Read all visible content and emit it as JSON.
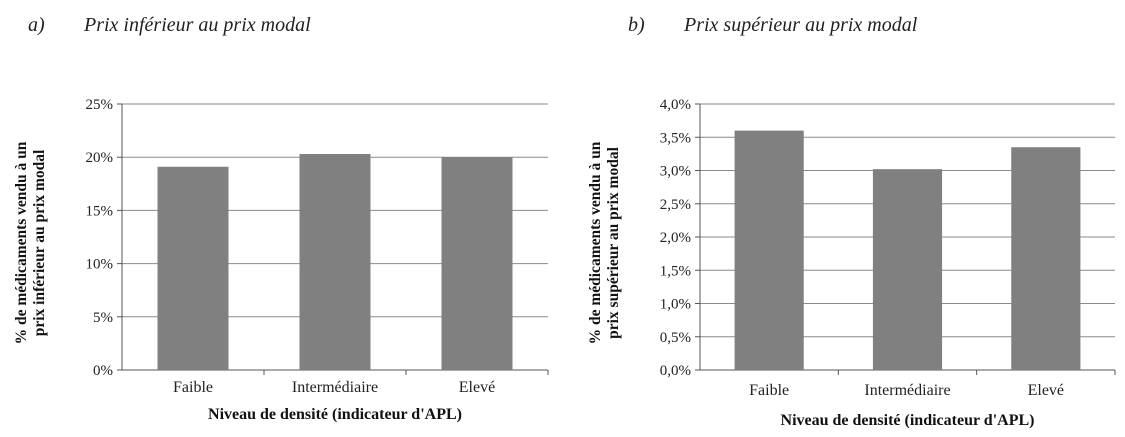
{
  "captions": [
    {
      "letter": "a)",
      "text": "Prix inférieur au prix modal"
    },
    {
      "letter": "b)",
      "text": "Prix supérieur au prix modal"
    }
  ],
  "chart_data": [
    {
      "type": "bar",
      "categories": [
        "Faible",
        "Intermédiaire",
        "Elevé"
      ],
      "values": [
        19.1,
        20.3,
        20.0
      ],
      "ylim": [
        0,
        25
      ],
      "yticks": [
        0,
        5,
        10,
        15,
        20,
        25
      ],
      "ytick_labels": [
        "0%",
        "5%",
        "10%",
        "15%",
        "20%",
        "25%"
      ],
      "ylabel_lines": [
        "% de médicaments vendu à un",
        "prix inférieur au prix modal"
      ],
      "xlabel": "Niveau de densité (indicateur d'APL)",
      "grid": true,
      "bar_color": "#808080"
    },
    {
      "type": "bar",
      "categories": [
        "Faible",
        "Intermédiaire",
        "Elevé"
      ],
      "values": [
        3.6,
        3.02,
        3.35
      ],
      "ylim": [
        0,
        4.0
      ],
      "yticks": [
        0,
        0.5,
        1.0,
        1.5,
        2.0,
        2.5,
        3.0,
        3.5,
        4.0
      ],
      "ytick_labels": [
        "0,0%",
        "0,5%",
        "1,0%",
        "1,5%",
        "2,0%",
        "2,5%",
        "3,0%",
        "3,5%",
        "4,0%"
      ],
      "ylabel_lines": [
        "% de médicaments vendu à un",
        "prix supérieur au prix modal"
      ],
      "xlabel": "Niveau de densité (indicateur d'APL)",
      "grid": true,
      "bar_color": "#808080"
    }
  ]
}
